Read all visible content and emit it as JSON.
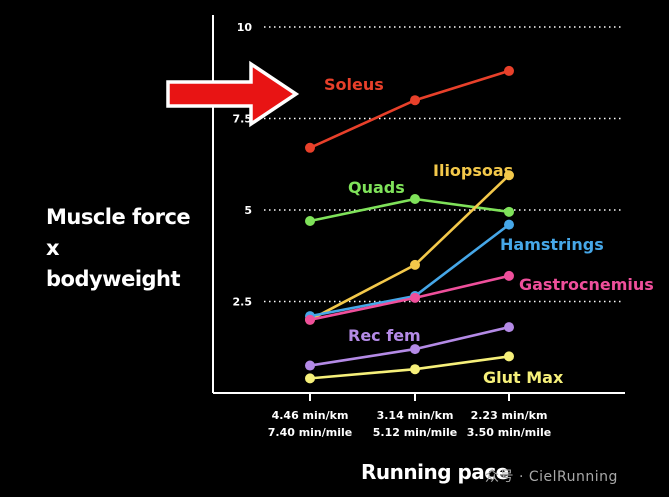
{
  "chart_data": {
    "type": "line",
    "ylabel": "Muscle force\nx bodyweight",
    "xlabel": "Running pace",
    "categories": [
      {
        "primary": "4.46 min/km",
        "secondary": "7.40 min/mile"
      },
      {
        "primary": "3.14 min/km",
        "secondary": "5.12 min/mile"
      },
      {
        "primary": "2.23 min/km",
        "secondary": "3.50 min/mile"
      }
    ],
    "ylim": [
      0,
      10
    ],
    "yticks": [
      "2.5",
      "5",
      "7.5",
      "10"
    ],
    "grid": "horizontal dotted",
    "series": [
      {
        "name": "Soleus",
        "color": "#e8402a",
        "values": [
          6.7,
          8.0,
          8.8
        ]
      },
      {
        "name": "Quads",
        "color": "#7fe25a",
        "values": [
          4.7,
          5.3,
          4.95
        ]
      },
      {
        "name": "Iliopsoas",
        "color": "#f3c84a",
        "values": [
          2.0,
          3.5,
          5.95
        ]
      },
      {
        "name": "Hamstrings",
        "color": "#46a7e8",
        "values": [
          2.1,
          2.65,
          4.6
        ]
      },
      {
        "name": "Gastrocnemius",
        "color": "#ef4f9b",
        "values": [
          2.0,
          2.6,
          3.2
        ]
      },
      {
        "name": "Rec fem",
        "color": "#b48ae6",
        "values": [
          0.75,
          1.2,
          1.8
        ]
      },
      {
        "name": "Glut Max",
        "color": "#f6f07a",
        "values": [
          0.4,
          0.65,
          1.0
        ]
      }
    ],
    "highlight_arrow": {
      "color": "#e81414",
      "points_to": "Soleus"
    }
  },
  "watermark": "众号 · CielRunning"
}
